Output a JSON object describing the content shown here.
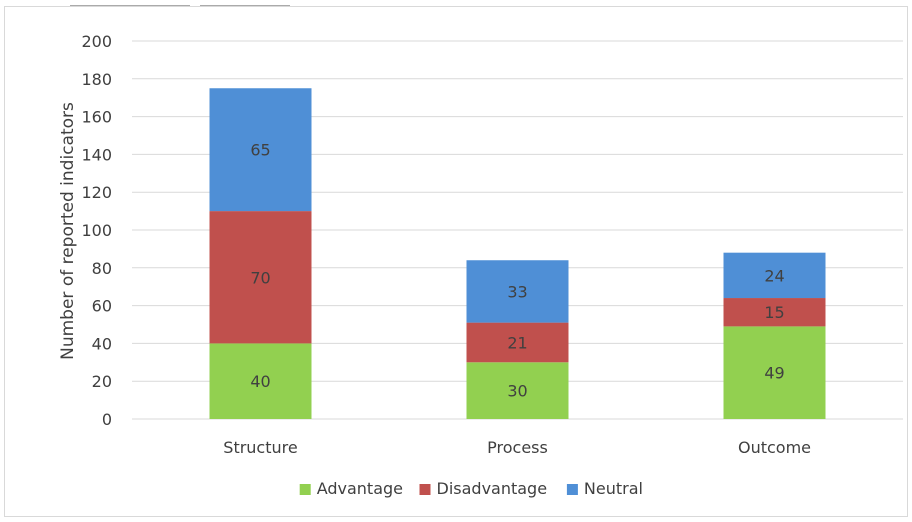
{
  "chart_data": {
    "type": "bar",
    "stacked": true,
    "title": "",
    "xlabel": "",
    "ylabel": "Number of reported indicators",
    "categories": [
      "Structure",
      "Process",
      "Outcome"
    ],
    "series": [
      {
        "name": "Advantage",
        "values": [
          40,
          30,
          49
        ],
        "color": "#92d050"
      },
      {
        "name": "Disadvantage",
        "values": [
          70,
          21,
          15
        ],
        "color": "#c0504d"
      },
      {
        "name": "Neutral",
        "values": [
          65,
          33,
          24
        ],
        "color": "#4f8fd6"
      }
    ],
    "ylim": [
      0,
      200
    ],
    "yticks": [
      0,
      20,
      40,
      60,
      80,
      100,
      120,
      140,
      160,
      180,
      200
    ],
    "grid": true,
    "legend": "bottom",
    "data_labels": true
  }
}
